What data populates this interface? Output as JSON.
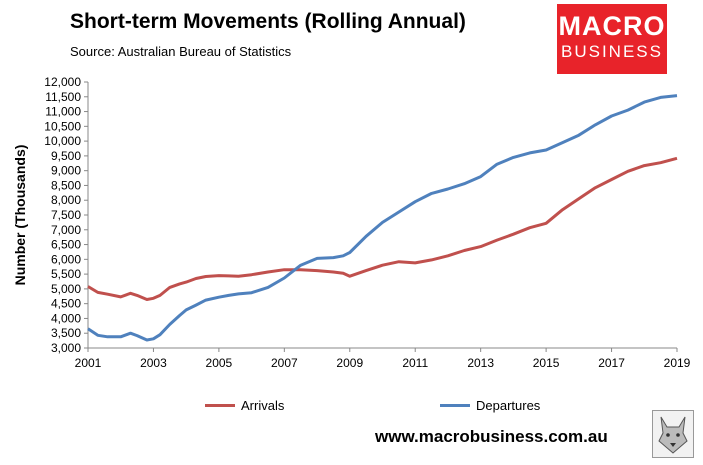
{
  "title": "Short-term Movements (Rolling Annual)",
  "subtitle": "Source: Australian Bureau of Statistics",
  "logo": {
    "line1": "MACRO",
    "line2": "BUSINESS",
    "color": "#e8232a",
    "icon": "wolf-logo-icon"
  },
  "footer": {
    "url": "www.macrobusiness.com.au"
  },
  "chart_data": {
    "type": "line",
    "title": "Short-term Movements (Rolling Annual)",
    "ylabel": "Number (Thousands)",
    "xlabel": "",
    "ylim": [
      3000,
      12000
    ],
    "xlim": [
      2001,
      2019
    ],
    "y_ticks": [
      "3,000",
      "3,500",
      "4,000",
      "4,500",
      "5,000",
      "5,500",
      "6,000",
      "6,500",
      "7,000",
      "7,500",
      "8,000",
      "8,500",
      "9,000",
      "9,500",
      "10,000",
      "10,500",
      "11,000",
      "11,500",
      "12,000"
    ],
    "x_ticks": [
      "2001",
      "2003",
      "2005",
      "2007",
      "2009",
      "2011",
      "2013",
      "2015",
      "2017",
      "2019"
    ],
    "legend_position": "bottom",
    "grid": false,
    "series": [
      {
        "name": "Arrivals",
        "color": "#c0504d",
        "x": [
          2001.0,
          2001.3,
          2001.6,
          2002.0,
          2002.3,
          2002.5,
          2002.8,
          2003.0,
          2003.2,
          2003.5,
          2003.8,
          2004.0,
          2004.3,
          2004.6,
          2005.0,
          2005.3,
          2005.6,
          2006.0,
          2006.5,
          2007.0,
          2007.5,
          2008.0,
          2008.5,
          2008.8,
          2009.0,
          2009.5,
          2010.0,
          2010.5,
          2011.0,
          2011.5,
          2012.0,
          2012.5,
          2013.0,
          2013.5,
          2014.0,
          2014.5,
          2015.0,
          2015.5,
          2016.0,
          2016.5,
          2017.0,
          2017.5,
          2018.0,
          2018.5,
          2019.0
        ],
        "values": [
          5080,
          4880,
          4820,
          4730,
          4850,
          4780,
          4640,
          4680,
          4780,
          5050,
          5170,
          5230,
          5350,
          5420,
          5450,
          5440,
          5430,
          5480,
          5570,
          5650,
          5650,
          5620,
          5570,
          5530,
          5430,
          5620,
          5800,
          5920,
          5880,
          5980,
          6120,
          6300,
          6430,
          6650,
          6850,
          7070,
          7220,
          7680,
          8050,
          8420,
          8700,
          8980,
          9170,
          9270,
          9420
        ]
      },
      {
        "name": "Departures",
        "color": "#4f81bd",
        "x": [
          2001.0,
          2001.3,
          2001.6,
          2002.0,
          2002.3,
          2002.5,
          2002.8,
          2003.0,
          2003.2,
          2003.5,
          2003.8,
          2004.0,
          2004.3,
          2004.6,
          2005.0,
          2005.3,
          2005.6,
          2006.0,
          2006.5,
          2007.0,
          2007.5,
          2008.0,
          2008.5,
          2008.8,
          2009.0,
          2009.5,
          2010.0,
          2010.5,
          2011.0,
          2011.5,
          2012.0,
          2012.5,
          2013.0,
          2013.5,
          2014.0,
          2014.5,
          2015.0,
          2015.5,
          2016.0,
          2016.5,
          2017.0,
          2017.5,
          2018.0,
          2018.5,
          2019.0
        ],
        "values": [
          3650,
          3430,
          3380,
          3380,
          3500,
          3420,
          3270,
          3310,
          3450,
          3800,
          4100,
          4290,
          4450,
          4620,
          4720,
          4780,
          4830,
          4870,
          5050,
          5370,
          5800,
          6030,
          6060,
          6120,
          6230,
          6780,
          7250,
          7600,
          7950,
          8230,
          8380,
          8560,
          8800,
          9220,
          9450,
          9600,
          9700,
          9950,
          10200,
          10550,
          10850,
          11050,
          11320,
          11480,
          11540
        ]
      }
    ]
  }
}
